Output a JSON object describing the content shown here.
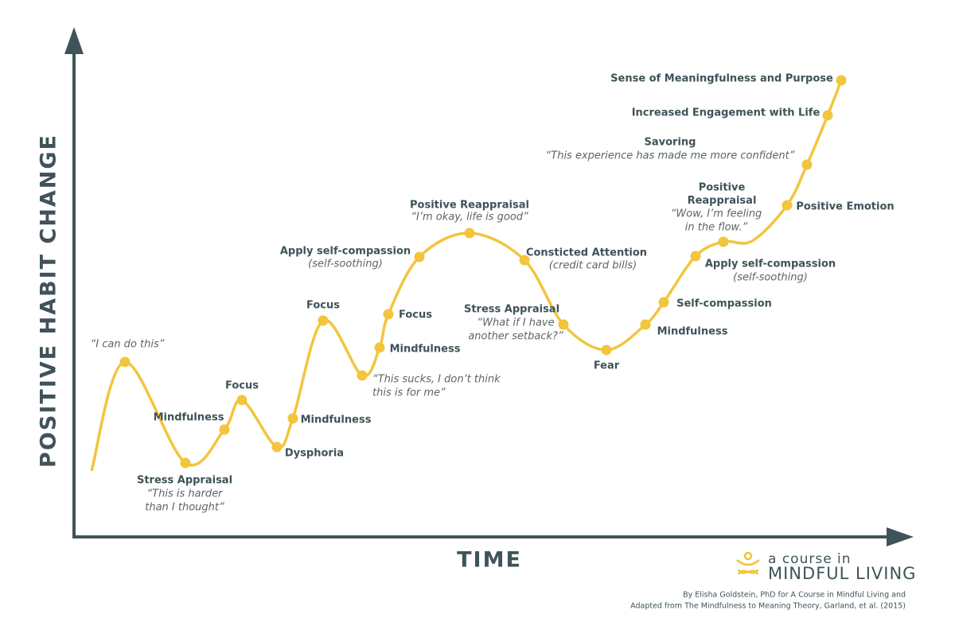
{
  "axes": {
    "y_label": "POSITIVE HABIT CHANGE",
    "x_label": "TIME"
  },
  "nodes": [
    {
      "label": [],
      "note": [
        "“I can do this”"
      ]
    },
    {
      "label": [
        "Stress Appraisal"
      ],
      "note": [
        "“This is harder",
        "than I thought”"
      ]
    },
    {
      "label": [
        "Mindfulness"
      ],
      "note": []
    },
    {
      "label": [
        "Focus"
      ],
      "note": []
    },
    {
      "label": [
        "Dysphoria"
      ],
      "note": []
    },
    {
      "label": [
        "Mindfulness"
      ],
      "note": []
    },
    {
      "label": [
        "Focus"
      ],
      "note": []
    },
    {
      "label": [],
      "note": [
        "“This sucks, I don’t think",
        "this is for me”"
      ]
    },
    {
      "label": [
        "Mindfulness"
      ],
      "note": []
    },
    {
      "label": [
        "Focus"
      ],
      "note": []
    },
    {
      "label": [
        "Apply self-compassion"
      ],
      "note": [
        "(self-soothing)"
      ]
    },
    {
      "label": [
        "Positive Reappraisal"
      ],
      "note": [
        "“I’m okay, life is good”"
      ]
    },
    {
      "label": [
        "Consticted Attention"
      ],
      "note": [
        "(credit card bills)"
      ]
    },
    {
      "label": [
        "Stress Appraisal"
      ],
      "note": [
        "“What if I have",
        "another setback?”"
      ]
    },
    {
      "label": [
        "Fear"
      ],
      "note": []
    },
    {
      "label": [
        "Mindfulness"
      ],
      "note": []
    },
    {
      "label": [
        "Self-compassion"
      ],
      "note": []
    },
    {
      "label": [
        "Apply self-compassion"
      ],
      "note": [
        "(self-soothing)"
      ]
    },
    {
      "label": [
        "Positive",
        "Reappraisal"
      ],
      "note": [
        "“Wow, I’m feeling",
        "in the flow.”"
      ]
    },
    {
      "label": [
        "Positive Emotion"
      ],
      "note": []
    },
    {
      "label": [
        "Savoring"
      ],
      "note": [
        "“This experience has made me more confident”"
      ]
    },
    {
      "label": [
        "Increased Engagement with Life"
      ],
      "note": []
    },
    {
      "label": [
        "Sense of Meaningfulness and Purpose"
      ],
      "note": []
    }
  ],
  "logo": {
    "line1": "a course in",
    "line2": "MINDFUL LIVING"
  },
  "credit": [
    "By Elisha Goldstein, PhD for A Course in Mindful Living and",
    "Adapted from The Mindfulness to Meaning Theory, Garland, et al. (2015)"
  ]
}
